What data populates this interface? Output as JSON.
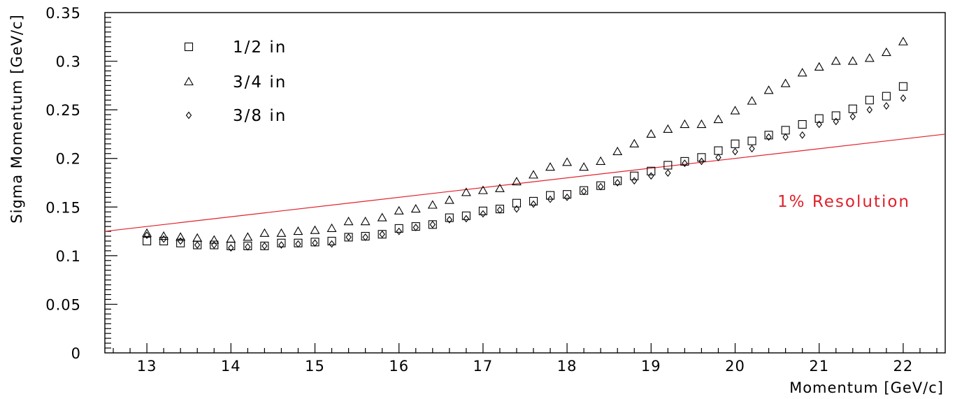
{
  "chart_data": {
    "type": "scatter",
    "xlabel": "Momentum [GeV/c]",
    "ylabel": "Sigma Momentum [GeV/c]",
    "xlim": [
      12.5,
      22.5
    ],
    "ylim": [
      0,
      0.35
    ],
    "x_ticks": [
      "13",
      "14",
      "15",
      "16",
      "17",
      "18",
      "19",
      "20",
      "21",
      "22"
    ],
    "y_ticks": [
      "0",
      "0.05",
      "0.1",
      "0.15",
      "0.2",
      "0.25",
      "0.3",
      "0.35"
    ],
    "grid": false,
    "legend_position": "top-left",
    "x": [
      13,
      13.2,
      13.4,
      13.6,
      13.8,
      14,
      14.2,
      14.4,
      14.6,
      14.8,
      15,
      15.2,
      15.4,
      15.6,
      15.8,
      16,
      16.2,
      16.4,
      16.6,
      16.8,
      17,
      17.2,
      17.4,
      17.6,
      17.8,
      18,
      18.2,
      18.4,
      18.6,
      18.8,
      19,
      19.2,
      19.4,
      19.6,
      19.8,
      20,
      20.2,
      20.4,
      20.6,
      20.8,
      21,
      21.2,
      21.4,
      21.6,
      21.8,
      22
    ],
    "series": [
      {
        "name": "1/2 in",
        "marker": "square",
        "values": [
          0.115,
          0.115,
          0.113,
          0.111,
          0.111,
          0.11,
          0.11,
          0.11,
          0.113,
          0.113,
          0.114,
          0.115,
          0.119,
          0.12,
          0.122,
          0.128,
          0.13,
          0.132,
          0.139,
          0.141,
          0.146,
          0.148,
          0.154,
          0.156,
          0.162,
          0.163,
          0.167,
          0.172,
          0.177,
          0.182,
          0.187,
          0.193,
          0.197,
          0.201,
          0.208,
          0.215,
          0.218,
          0.224,
          0.229,
          0.235,
          0.241,
          0.244,
          0.251,
          0.26,
          0.264,
          0.274
        ]
      },
      {
        "name": "3/4 in",
        "marker": "triangle",
        "values": [
          0.123,
          0.12,
          0.119,
          0.118,
          0.116,
          0.117,
          0.119,
          0.123,
          0.123,
          0.125,
          0.126,
          0.128,
          0.135,
          0.135,
          0.139,
          0.146,
          0.148,
          0.152,
          0.157,
          0.165,
          0.167,
          0.169,
          0.176,
          0.183,
          0.191,
          0.196,
          0.191,
          0.197,
          0.207,
          0.215,
          0.225,
          0.23,
          0.235,
          0.235,
          0.24,
          0.249,
          0.259,
          0.27,
          0.277,
          0.288,
          0.294,
          0.3,
          0.3,
          0.303,
          0.309,
          0.32
        ]
      },
      {
        "name": "3/8 in",
        "marker": "diamond",
        "values": [
          0.121,
          0.117,
          0.115,
          0.111,
          0.111,
          0.108,
          0.109,
          0.11,
          0.111,
          0.112,
          0.113,
          0.112,
          0.119,
          0.119,
          0.122,
          0.125,
          0.129,
          0.132,
          0.137,
          0.138,
          0.143,
          0.147,
          0.148,
          0.153,
          0.158,
          0.16,
          0.166,
          0.171,
          0.175,
          0.177,
          0.182,
          0.185,
          0.195,
          0.197,
          0.201,
          0.207,
          0.21,
          0.222,
          0.222,
          0.224,
          0.235,
          0.238,
          0.243,
          0.25,
          0.254,
          0.262
        ]
      }
    ],
    "reference_line": {
      "label": "1% Resolution",
      "color": "#e0212b",
      "x": [
        12.5,
        22.5
      ],
      "values": [
        0.125,
        0.225
      ]
    }
  }
}
